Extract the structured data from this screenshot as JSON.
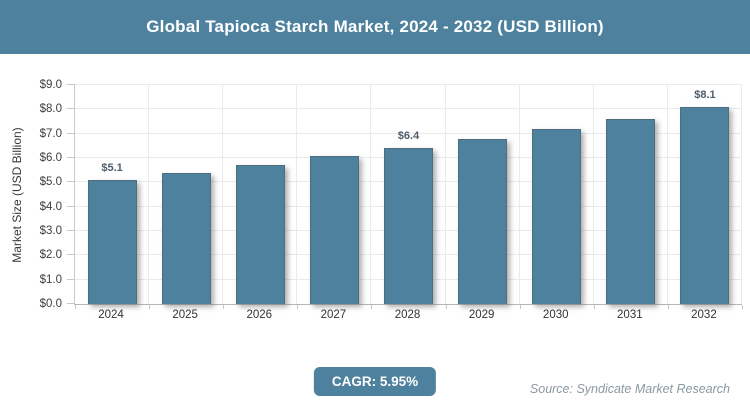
{
  "header": {
    "title": "Global Tapioca Starch Market, 2024 - 2032 (USD Billion)"
  },
  "chart_data": {
    "type": "bar",
    "title": "Global Tapioca Starch Market, 2024 - 2032 (USD Billion)",
    "categories": [
      "2024",
      "2025",
      "2026",
      "2027",
      "2028",
      "2029",
      "2030",
      "2031",
      "2032"
    ],
    "values": [
      5.1,
      5.4,
      5.7,
      6.1,
      6.4,
      6.8,
      7.2,
      7.6,
      8.1
    ],
    "bar_labels": [
      "$5.1",
      "",
      "",
      "",
      "$6.4",
      "",
      "",
      "",
      "$8.1"
    ],
    "xlabel": "",
    "ylabel": "Market Size (USD Billion)",
    "ylim": [
      0,
      9
    ],
    "ytick_labels": [
      "$0.0",
      "$1.0",
      "$2.0",
      "$3.0",
      "$4.0",
      "$5.0",
      "$6.0",
      "$7.0",
      "$8.0",
      "$9.0"
    ],
    "grid": "on",
    "legend": "none",
    "bar_color": "#4d819e"
  },
  "footer": {
    "cagr_label": "CAGR: 5.95%",
    "source": "Source: Syndicate Market Research"
  },
  "colors": {
    "accent_teal": "#4d819e",
    "grid": "#e8eaec",
    "axis": "#c4c8cb",
    "tick_text": "#3d3d3d",
    "data_label": "#4e5d6c",
    "source_text": "#8a99a4"
  }
}
